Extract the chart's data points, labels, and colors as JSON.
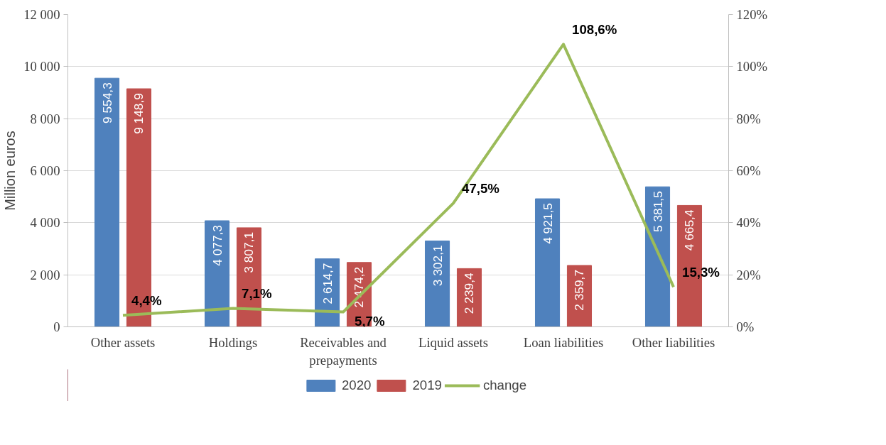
{
  "chart_data": {
    "type": "bar",
    "ylabel": "Million euros",
    "categories": [
      "Other assets",
      "Holdings",
      "Receivables and prepayments",
      "Liquid assets",
      "Loan liabilities",
      "Other liabilities"
    ],
    "series": [
      {
        "name": "2020",
        "color": "#4f81bd",
        "values": [
          9554.3,
          4077.3,
          2614.7,
          3302.1,
          4921.5,
          5381.5
        ],
        "value_labels": [
          "9 554,3",
          "4 077,3",
          "2 614,7",
          "3 302,1",
          "4 921,5",
          "5 381,5"
        ]
      },
      {
        "name": "2019",
        "color": "#c0504d",
        "values": [
          9148.9,
          3807.1,
          2474.2,
          2239.4,
          2359.7,
          4665.4
        ],
        "value_labels": [
          "9 148,9",
          "3 807,1",
          "2 474,2",
          "2 239,4",
          "2 359,7",
          "4 665,4"
        ]
      },
      {
        "name": "change",
        "type": "line",
        "axis": "y2",
        "color": "#9bbb59",
        "values": [
          4.4,
          7.1,
          5.7,
          47.5,
          108.6,
          15.3
        ],
        "value_labels": [
          "4,4%",
          "7,1%",
          "5,7%",
          "47,5%",
          "108,6%",
          "15,3%"
        ]
      }
    ],
    "ylim": [
      0,
      12000
    ],
    "yticks": [
      {
        "value": 0,
        "label": "0"
      },
      {
        "value": 2000,
        "label": "2 000"
      },
      {
        "value": 4000,
        "label": "4 000"
      },
      {
        "value": 6000,
        "label": "6 000"
      },
      {
        "value": 8000,
        "label": "8 000"
      },
      {
        "value": 10000,
        "label": "10 000"
      },
      {
        "value": 12000,
        "label": "12 000"
      }
    ],
    "y2lim": [
      0,
      120
    ],
    "y2ticks": [
      {
        "value": 0,
        "label": "0%"
      },
      {
        "value": 20,
        "label": "20%"
      },
      {
        "value": 40,
        "label": "40%"
      },
      {
        "value": 60,
        "label": "60%"
      },
      {
        "value": 80,
        "label": "80%"
      },
      {
        "value": 100,
        "label": "100%"
      },
      {
        "value": 120,
        "label": "120%"
      }
    ],
    "grid": "y",
    "legend": "bottom",
    "marker": "none",
    "line_style": "solid"
  }
}
